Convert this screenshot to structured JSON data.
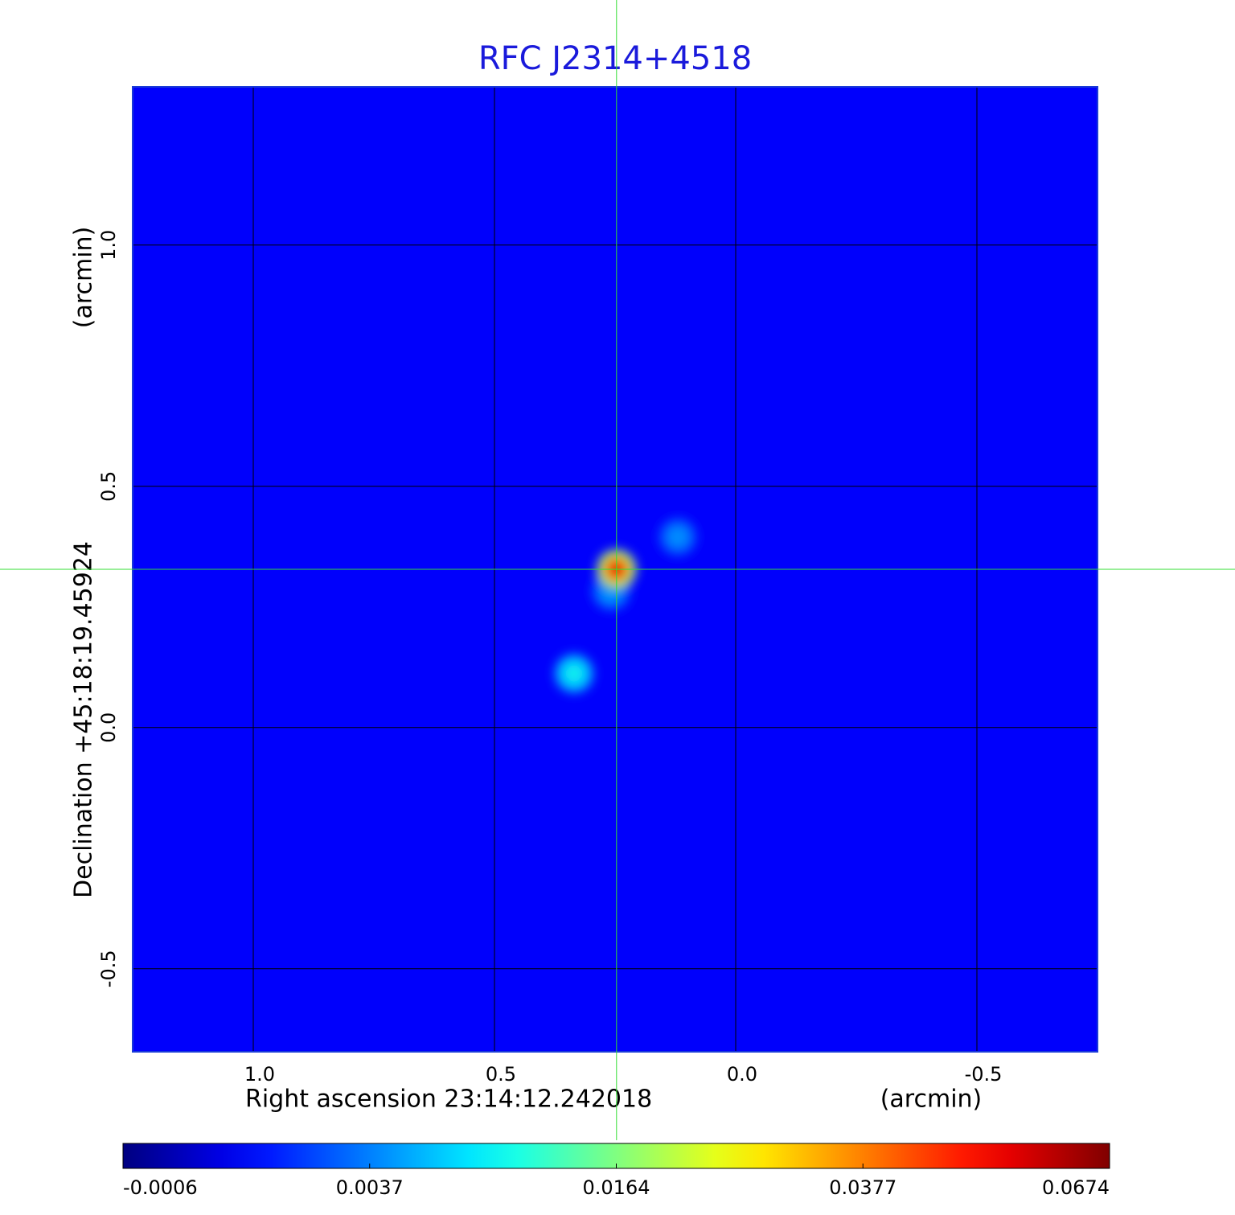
{
  "chart_data": {
    "type": "image",
    "title": "RFC J2314+4518",
    "xlabel": "Right ascension  23:14:12.242018",
    "xunit": "(arcmin)",
    "ylabel": "Declination  +45:18:19.45924",
    "yunit": "(arcmin)",
    "xlim": [
      1.25,
      -0.75
    ],
    "ylim": [
      -0.672,
      1.328
    ],
    "xticks": [
      {
        "value": 1,
        "label": "1.0"
      },
      0.5,
      {
        "value": 0,
        "label": "0.0"
      },
      -0.5
    ],
    "yticks": [
      -0.5,
      {
        "value": 0,
        "label": "0.0"
      },
      0.5,
      {
        "value": 1,
        "label": "1.0"
      }
    ],
    "grid": true,
    "colormap": "jet",
    "colorbar_ticks": [
      -0.0006,
      0.0037,
      0.0164,
      0.0377,
      0.0674
    ],
    "background": 0.0015,
    "crosshair": [
      0.247,
      0.328
    ],
    "sources": {
      "x": [
        0.335,
        0.258,
        0.12,
        0.247
      ],
      "y": [
        0.112,
        0.283,
        0.395,
        0.328
      ],
      "values": [
        0.012,
        0.006,
        0.005,
        0.06
      ]
    }
  }
}
